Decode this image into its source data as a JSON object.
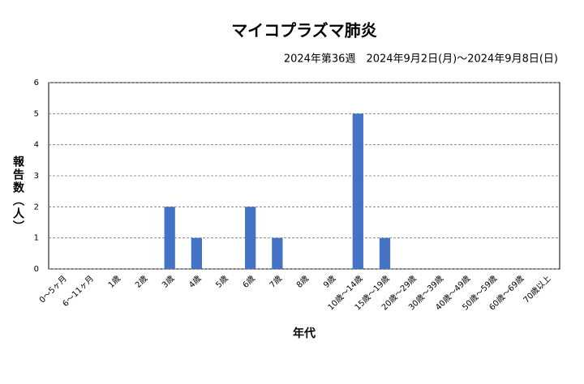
{
  "chart_data": {
    "type": "bar",
    "title": "マイコプラズマ肺炎",
    "subtitle": "2024年第36週　2024年9月2日(月)～2024年9月8日(日)",
    "x_label": "年代",
    "y_label": "報告数（人）",
    "categories": [
      "0～5ヶ月",
      "6～11ヶ月",
      "1歳",
      "2歳",
      "3歳",
      "4歳",
      "5歳",
      "6歳",
      "7歳",
      "8歳",
      "9歳",
      "10歳～14歳",
      "15歳～19歳",
      "20歳～29歳",
      "30歳～39歳",
      "40歳～49歳",
      "50歳～59歳",
      "60歳～69歳",
      "70歳以上"
    ],
    "values": [
      0,
      0,
      0,
      0,
      2,
      1,
      0,
      2,
      1,
      0,
      0,
      5,
      1,
      0,
      0,
      0,
      0,
      0,
      0
    ],
    "color": "#4472c4",
    "ylim": [
      0,
      6
    ],
    "yticks": [
      0,
      1,
      2,
      3,
      4,
      5,
      6
    ],
    "grid": true
  }
}
